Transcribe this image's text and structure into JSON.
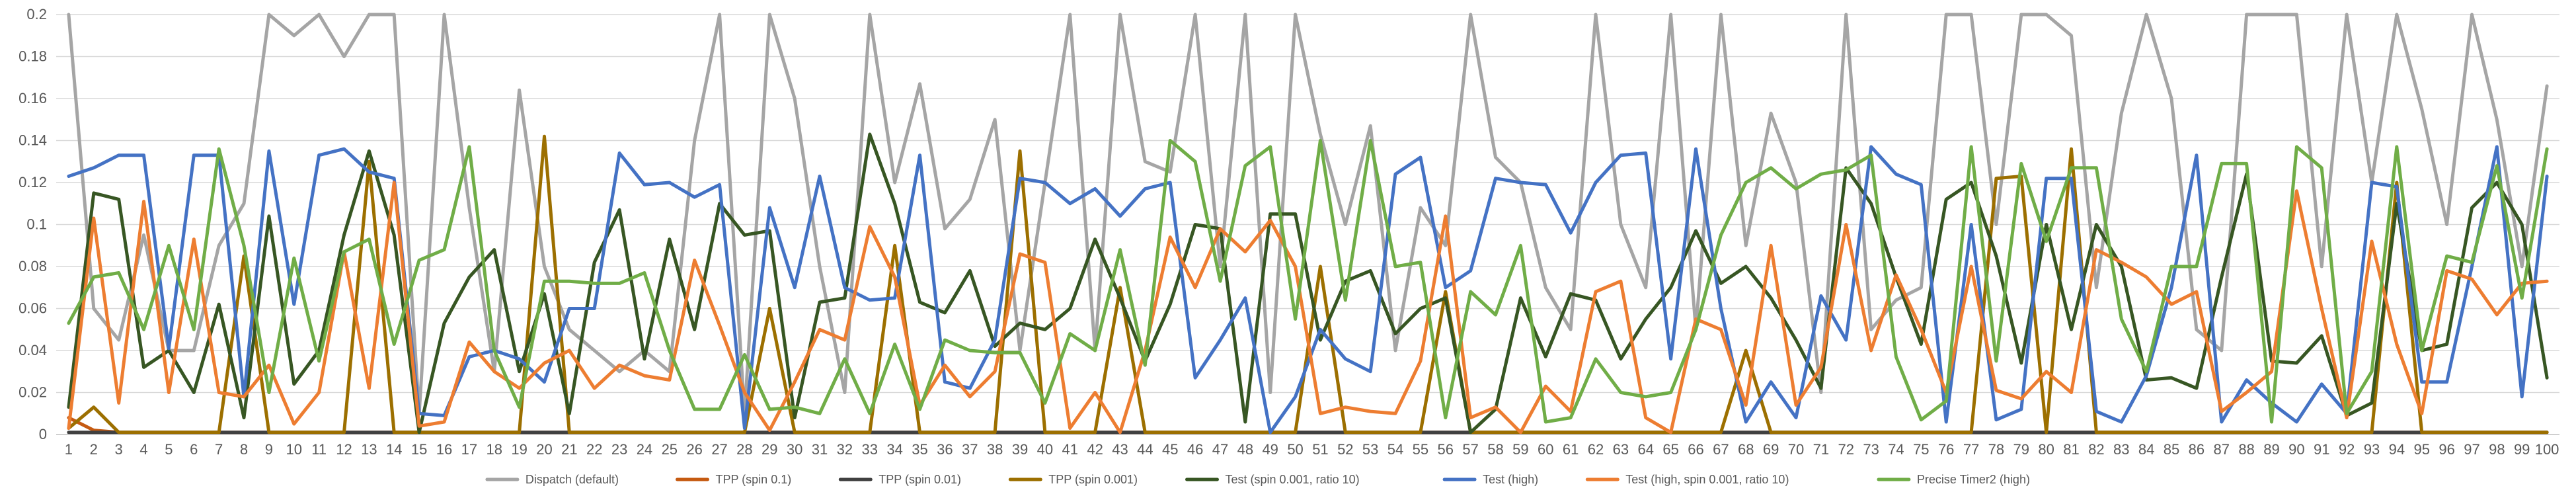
{
  "chart_data": {
    "type": "line",
    "title": "",
    "xlabel": "",
    "ylabel": "",
    "ylim": [
      0,
      0.2
    ],
    "yticks": [
      "0",
      "0.02",
      "0.04",
      "0.06",
      "0.08",
      "0.1",
      "0.12",
      "0.14",
      "0.16",
      "0.18",
      "0.2"
    ],
    "x": [
      1,
      2,
      3,
      4,
      5,
      6,
      7,
      8,
      9,
      10,
      11,
      12,
      13,
      14,
      15,
      16,
      17,
      18,
      19,
      20,
      21,
      22,
      23,
      24,
      25,
      26,
      27,
      28,
      29,
      30,
      31,
      32,
      33,
      34,
      35,
      36,
      37,
      38,
      39,
      40,
      41,
      42,
      43,
      44,
      45,
      46,
      47,
      48,
      49,
      50,
      51,
      52,
      53,
      54,
      55,
      56,
      57,
      58,
      59,
      60,
      61,
      62,
      63,
      64,
      65,
      66,
      67,
      68,
      69,
      70,
      71,
      72,
      73,
      74,
      75,
      76,
      77,
      78,
      79,
      80,
      81,
      82,
      83,
      84,
      85,
      86,
      87,
      88,
      89,
      90,
      91,
      92,
      93,
      94,
      95,
      96,
      97,
      98,
      99,
      100
    ],
    "grid": true,
    "legend_position": "bottom",
    "series": [
      {
        "name": "Dispatch (default)",
        "color": "#a5a5a5",
        "values": [
          0.2,
          0.06,
          0.045,
          0.095,
          0.04,
          0.04,
          0.09,
          0.11,
          0.2,
          0.19,
          0.2,
          0.18,
          0.2,
          0.2,
          0.01,
          0.2,
          0.108,
          0.03,
          0.164,
          0.08,
          0.05,
          0.04,
          0.03,
          0.04,
          0.03,
          0.14,
          0.2,
          0.01,
          0.2,
          0.16,
          0.08,
          0.02,
          0.2,
          0.12,
          0.167,
          0.098,
          0.112,
          0.15,
          0.04,
          0.12,
          0.2,
          0.04,
          0.2,
          0.13,
          0.125,
          0.2,
          0.08,
          0.2,
          0.02,
          0.2,
          0.143,
          0.1,
          0.147,
          0.04,
          0.108,
          0.09,
          0.2,
          0.132,
          0.12,
          0.07,
          0.05,
          0.2,
          0.1,
          0.07,
          0.2,
          0.05,
          0.2,
          0.09,
          0.153,
          0.12,
          0.02,
          0.2,
          0.05,
          0.064,
          0.07,
          0.2,
          0.2,
          0.1,
          0.2,
          0.2,
          0.19,
          0.07,
          0.153,
          0.2,
          0.16,
          0.05,
          0.04,
          0.2,
          0.2,
          0.2,
          0.08,
          0.2,
          0.12,
          0.2,
          0.155,
          0.1,
          0.2,
          0.15,
          0.08,
          0.166
        ]
      },
      {
        "name": "TPP (spin 0.1)",
        "color": "#c55a11",
        "values": [
          0.008,
          0.002,
          0.001,
          0.001,
          0.001,
          0.001,
          0.001,
          0.001,
          0.001,
          0.001,
          0.001,
          0.001,
          0.001,
          0.001,
          0.001,
          0.001,
          0.001,
          0.001,
          0.001,
          0.001,
          0.001,
          0.001,
          0.001,
          0.001,
          0.001,
          0.001,
          0.001,
          0.001,
          0.001,
          0.001,
          0.001,
          0.001,
          0.001,
          0.001,
          0.001,
          0.001,
          0.001,
          0.001,
          0.001,
          0.001,
          0.001,
          0.001,
          0.001,
          0.001,
          0.001,
          0.001,
          0.001,
          0.001,
          0.001,
          0.001,
          0.001,
          0.001,
          0.001,
          0.001,
          0.001,
          0.001,
          0.001,
          0.001,
          0.001,
          0.001,
          0.001,
          0.001,
          0.001,
          0.001,
          0.001,
          0.001,
          0.001,
          0.001,
          0.001,
          0.001,
          0.001,
          0.001,
          0.001,
          0.001,
          0.001,
          0.001,
          0.001,
          0.001,
          0.001,
          0.001,
          0.001,
          0.001,
          0.001,
          0.001,
          0.001,
          0.001,
          0.001,
          0.001,
          0.001,
          0.001,
          0.001,
          0.001,
          0.001,
          0.001,
          0.001,
          0.001,
          0.001,
          0.001,
          0.001,
          0.001
        ]
      },
      {
        "name": "TPP (spin 0.01)",
        "color": "#404040",
        "values": [
          0.001,
          0.001,
          0.001,
          0.001,
          0.001,
          0.001,
          0.001,
          0.001,
          0.001,
          0.001,
          0.001,
          0.001,
          0.001,
          0.001,
          0.001,
          0.001,
          0.001,
          0.001,
          0.001,
          0.001,
          0.001,
          0.001,
          0.001,
          0.001,
          0.001,
          0.001,
          0.001,
          0.001,
          0.001,
          0.001,
          0.001,
          0.001,
          0.001,
          0.001,
          0.001,
          0.001,
          0.001,
          0.001,
          0.001,
          0.001,
          0.001,
          0.001,
          0.001,
          0.001,
          0.001,
          0.001,
          0.001,
          0.001,
          0.001,
          0.001,
          0.001,
          0.001,
          0.001,
          0.001,
          0.001,
          0.001,
          0.001,
          0.001,
          0.001,
          0.001,
          0.001,
          0.001,
          0.001,
          0.001,
          0.001,
          0.001,
          0.001,
          0.001,
          0.001,
          0.001,
          0.001,
          0.001,
          0.001,
          0.001,
          0.001,
          0.001,
          0.001,
          0.001,
          0.001,
          0.001,
          0.001,
          0.001,
          0.001,
          0.001,
          0.001,
          0.001,
          0.001,
          0.001,
          0.001,
          0.001,
          0.001,
          0.001,
          0.001,
          0.001,
          0.001,
          0.001,
          0.001,
          0.001,
          0.001,
          0.001
        ]
      },
      {
        "name": "TPP (spin 0.001)",
        "color": "#9c6f00",
        "values": [
          0.003,
          0.013,
          0.001,
          0.001,
          0.001,
          0.001,
          0.001,
          0.085,
          0.001,
          0.001,
          0.001,
          0.001,
          0.13,
          0.001,
          0.001,
          0.001,
          0.001,
          0.001,
          0.001,
          0.142,
          0.001,
          0.001,
          0.001,
          0.001,
          0.001,
          0.001,
          0.001,
          0.001,
          0.06,
          0.001,
          0.001,
          0.001,
          0.001,
          0.09,
          0.001,
          0.001,
          0.001,
          0.001,
          0.135,
          0.001,
          0.001,
          0.001,
          0.07,
          0.001,
          0.001,
          0.001,
          0.001,
          0.001,
          0.001,
          0.001,
          0.08,
          0.001,
          0.001,
          0.001,
          0.001,
          0.068,
          0.001,
          0.001,
          0.001,
          0.001,
          0.001,
          0.001,
          0.001,
          0.001,
          0.001,
          0.001,
          0.001,
          0.04,
          0.001,
          0.001,
          0.001,
          0.001,
          0.001,
          0.001,
          0.001,
          0.001,
          0.001,
          0.122,
          0.123,
          0.001,
          0.136,
          0.001,
          0.001,
          0.001,
          0.001,
          0.001,
          0.001,
          0.001,
          0.001,
          0.001,
          0.001,
          0.001,
          0.001,
          0.12,
          0.001,
          0.001,
          0.001,
          0.001,
          0.001,
          0.001
        ]
      },
      {
        "name": "Test (spin 0.001,  ratio 10)",
        "color": "#375623",
        "values": [
          0.013,
          0.115,
          0.112,
          0.032,
          0.04,
          0.02,
          0.062,
          0.008,
          0.104,
          0.024,
          0.04,
          0.095,
          0.135,
          0.095,
          0.001,
          0.053,
          0.075,
          0.088,
          0.03,
          0.067,
          0.01,
          0.082,
          0.107,
          0.036,
          0.093,
          0.05,
          0.11,
          0.095,
          0.097,
          0.008,
          0.063,
          0.065,
          0.143,
          0.11,
          0.063,
          0.058,
          0.078,
          0.042,
          0.053,
          0.05,
          0.06,
          0.093,
          0.065,
          0.035,
          0.062,
          0.1,
          0.098,
          0.006,
          0.105,
          0.105,
          0.045,
          0.073,
          0.078,
          0.048,
          0.06,
          0.065,
          0.001,
          0.012,
          0.065,
          0.037,
          0.067,
          0.064,
          0.036,
          0.055,
          0.07,
          0.097,
          0.072,
          0.08,
          0.065,
          0.045,
          0.022,
          0.127,
          0.11,
          0.075,
          0.043,
          0.112,
          0.12,
          0.085,
          0.034,
          0.1,
          0.05,
          0.1,
          0.08,
          0.026,
          0.027,
          0.022,
          0.075,
          0.124,
          0.035,
          0.034,
          0.047,
          0.009,
          0.015,
          0.11,
          0.04,
          0.043,
          0.108,
          0.12,
          0.1,
          0.027
        ]
      },
      {
        "name": "Test (high)",
        "color": "#4472c4",
        "values": [
          0.123,
          0.127,
          0.133,
          0.133,
          0.041,
          0.133,
          0.133,
          0.018,
          0.135,
          0.062,
          0.133,
          0.136,
          0.125,
          0.122,
          0.01,
          0.009,
          0.037,
          0.04,
          0.036,
          0.025,
          0.06,
          0.06,
          0.134,
          0.119,
          0.12,
          0.113,
          0.119,
          0.003,
          0.108,
          0.07,
          0.123,
          0.07,
          0.064,
          0.065,
          0.133,
          0.025,
          0.022,
          0.045,
          0.122,
          0.12,
          0.11,
          0.117,
          0.104,
          0.117,
          0.12,
          0.027,
          0.045,
          0.065,
          0.001,
          0.018,
          0.05,
          0.036,
          0.03,
          0.124,
          0.132,
          0.07,
          0.078,
          0.122,
          0.12,
          0.119,
          0.096,
          0.12,
          0.133,
          0.134,
          0.036,
          0.136,
          0.06,
          0.006,
          0.025,
          0.008,
          0.066,
          0.045,
          0.137,
          0.124,
          0.119,
          0.006,
          0.1,
          0.007,
          0.012,
          0.122,
          0.122,
          0.011,
          0.006,
          0.028,
          0.07,
          0.133,
          0.006,
          0.026,
          0.015,
          0.006,
          0.024,
          0.01,
          0.12,
          0.118,
          0.025,
          0.025,
          0.08,
          0.137,
          0.018,
          0.123
        ]
      },
      {
        "name": "Test (high, spin 0.001, ratio 10)",
        "color": "#ed7d31",
        "values": [
          0.003,
          0.103,
          0.015,
          0.111,
          0.02,
          0.093,
          0.02,
          0.018,
          0.033,
          0.005,
          0.02,
          0.087,
          0.022,
          0.12,
          0.004,
          0.006,
          0.044,
          0.03,
          0.022,
          0.034,
          0.04,
          0.022,
          0.033,
          0.028,
          0.026,
          0.083,
          0.052,
          0.02,
          0.002,
          0.025,
          0.05,
          0.045,
          0.099,
          0.075,
          0.014,
          0.033,
          0.018,
          0.03,
          0.086,
          0.082,
          0.003,
          0.02,
          0.001,
          0.04,
          0.094,
          0.07,
          0.098,
          0.087,
          0.102,
          0.08,
          0.01,
          0.013,
          0.011,
          0.01,
          0.035,
          0.104,
          0.008,
          0.013,
          0.001,
          0.023,
          0.011,
          0.068,
          0.073,
          0.008,
          0.001,
          0.055,
          0.05,
          0.014,
          0.09,
          0.014,
          0.032,
          0.1,
          0.04,
          0.076,
          0.05,
          0.02,
          0.08,
          0.021,
          0.017,
          0.03,
          0.02,
          0.088,
          0.082,
          0.075,
          0.062,
          0.068,
          0.011,
          0.02,
          0.03,
          0.116,
          0.06,
          0.008,
          0.092,
          0.043,
          0.01,
          0.078,
          0.074,
          0.057,
          0.072,
          0.073
        ]
      },
      {
        "name": "Precise Timer2 (high)",
        "color": "#70ad47",
        "values": [
          0.053,
          0.075,
          0.077,
          0.05,
          0.09,
          0.05,
          0.136,
          0.09,
          0.02,
          0.084,
          0.035,
          0.087,
          0.093,
          0.043,
          0.083,
          0.088,
          0.137,
          0.04,
          0.013,
          0.073,
          0.073,
          0.072,
          0.072,
          0.077,
          0.04,
          0.012,
          0.012,
          0.038,
          0.012,
          0.013,
          0.01,
          0.036,
          0.01,
          0.043,
          0.012,
          0.045,
          0.04,
          0.039,
          0.039,
          0.015,
          0.048,
          0.04,
          0.088,
          0.033,
          0.14,
          0.13,
          0.073,
          0.128,
          0.137,
          0.055,
          0.14,
          0.064,
          0.14,
          0.08,
          0.082,
          0.008,
          0.068,
          0.057,
          0.09,
          0.006,
          0.008,
          0.036,
          0.02,
          0.018,
          0.02,
          0.05,
          0.095,
          0.12,
          0.127,
          0.117,
          0.124,
          0.126,
          0.133,
          0.037,
          0.007,
          0.016,
          0.137,
          0.035,
          0.129,
          0.092,
          0.127,
          0.127,
          0.055,
          0.03,
          0.08,
          0.08,
          0.129,
          0.129,
          0.006,
          0.137,
          0.127,
          0.01,
          0.03,
          0.137,
          0.04,
          0.085,
          0.082,
          0.128,
          0.065,
          0.136
        ]
      }
    ]
  }
}
